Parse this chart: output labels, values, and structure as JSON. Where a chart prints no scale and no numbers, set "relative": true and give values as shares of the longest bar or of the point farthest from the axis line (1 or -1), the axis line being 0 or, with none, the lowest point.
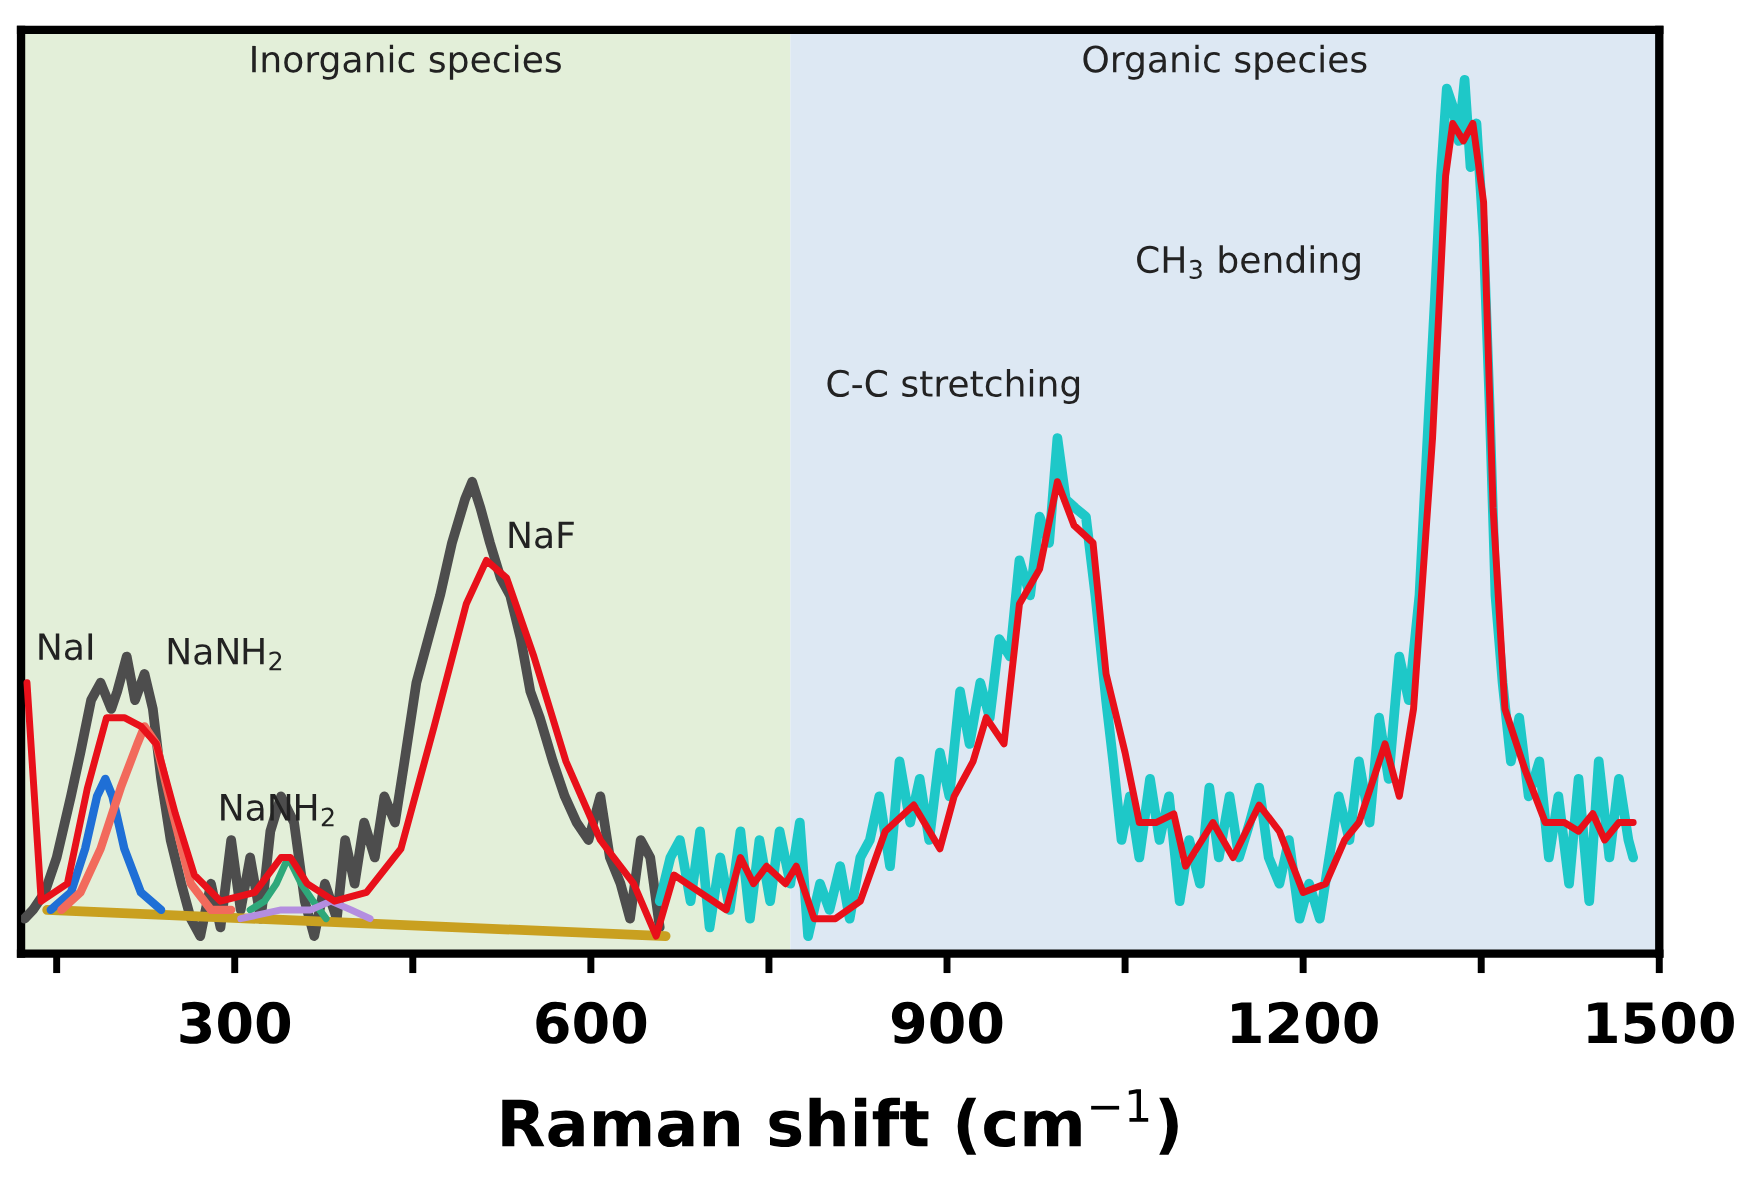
{
  "chart_data": {
    "type": "line",
    "relative": true,
    "xlabel": "Raman shift (cm$^{−1}$)",
    "xlim": [
      120,
      1500
    ],
    "xticks": [
      {
        "value": 150,
        "label": null
      },
      300,
      {
        "value": 450,
        "label": null
      },
      600,
      {
        "value": 750,
        "label": null
      },
      900,
      {
        "value": 1050,
        "label": null
      },
      1200,
      {
        "value": 1350,
        "label": null
      },
      1500
    ],
    "tick_labels": "x",
    "grid": false,
    "marker": "none",
    "line_style": "solid",
    "bands": [
      {
        "axis": "x",
        "from": 120,
        "to": 768,
        "label": "Inorganic species",
        "color": "#e3efd9"
      },
      {
        "axis": "x",
        "from": 768,
        "to": 1500,
        "label": "Organic species",
        "color": "#dde8f3"
      }
    ],
    "annotations": [
      "NaI",
      "NaNH$_{2}$",
      "NaNH$_{2}$",
      "NaF",
      "C-C stretching",
      "CH$_{3}$ bending"
    ],
    "series": [
      {
        "color": "#4d4d4d",
        "x": [
          123,
          130,
          140,
          150,
          162,
          170,
          179,
          187,
          196,
          201,
          209,
          216,
          224,
          231,
          238,
          246,
          255,
          263,
          271,
          280,
          288,
          297,
          305,
          313,
          322,
          330,
          339,
          350,
          359,
          367,
          376,
          386,
          393,
          401,
          409,
          418,
          426,
          435,
          443,
          453,
          463,
          473,
          483,
          494,
          500,
          507,
          515,
          524,
          532,
          541,
          549,
          557,
          568,
          578,
          588,
          598,
          608,
          616,
          625,
          633,
          642,
          650,
          658
        ],
        "values": [
          0.04,
          0.05,
          0.07,
          0.11,
          0.18,
          0.23,
          0.29,
          0.31,
          0.28,
          0.3,
          0.34,
          0.29,
          0.32,
          0.28,
          0.2,
          0.13,
          0.08,
          0.04,
          0.02,
          0.08,
          0.03,
          0.13,
          0.05,
          0.11,
          0.04,
          0.14,
          0.18,
          0.15,
          0.06,
          0.02,
          0.08,
          0.04,
          0.13,
          0.08,
          0.15,
          0.11,
          0.18,
          0.15,
          0.22,
          0.31,
          0.36,
          0.41,
          0.47,
          0.52,
          0.54,
          0.51,
          0.47,
          0.43,
          0.41,
          0.36,
          0.3,
          0.27,
          0.22,
          0.18,
          0.15,
          0.13,
          0.18,
          0.11,
          0.08,
          0.04,
          0.13,
          0.11,
          0.03
        ]
      },
      {
        "color": "#1ec8c8",
        "x": [
          658,
          667,
          675,
          684,
          692,
          700,
          709,
          717,
          726,
          734,
          742,
          751,
          759,
          768,
          776,
          783,
          793,
          801,
          810,
          818,
          827,
          835,
          843,
          852,
          860,
          869,
          877,
          885,
          894,
          902,
          911,
          919,
          928,
          936,
          944,
          953,
          961,
          970,
          978,
          986,
          993,
          1000,
          1008,
          1017,
          1025,
          1034,
          1040,
          1047,
          1054,
          1062,
          1071,
          1079,
          1087,
          1096,
          1104,
          1113,
          1121,
          1129,
          1138,
          1146,
          1155,
          1163,
          1171,
          1180,
          1188,
          1197,
          1205,
          1214,
          1222,
          1230,
          1239,
          1247,
          1256,
          1264,
          1272,
          1281,
          1289,
          1298,
          1304,
          1311,
          1316,
          1321,
          1326,
          1331,
          1336,
          1341,
          1346,
          1352,
          1357,
          1362,
          1368,
          1375,
          1382,
          1390,
          1399,
          1407,
          1415,
          1424,
          1432,
          1441,
          1449,
          1458,
          1466,
          1474,
          1478
        ],
        "values": [
          0.06,
          0.11,
          0.13,
          0.06,
          0.14,
          0.03,
          0.11,
          0.05,
          0.14,
          0.04,
          0.13,
          0.06,
          0.14,
          0.08,
          0.15,
          0.02,
          0.08,
          0.05,
          0.1,
          0.04,
          0.11,
          0.13,
          0.18,
          0.1,
          0.22,
          0.15,
          0.2,
          0.13,
          0.23,
          0.18,
          0.3,
          0.24,
          0.31,
          0.27,
          0.36,
          0.34,
          0.45,
          0.41,
          0.5,
          0.47,
          0.59,
          0.52,
          0.51,
          0.5,
          0.41,
          0.29,
          0.22,
          0.13,
          0.18,
          0.11,
          0.2,
          0.13,
          0.18,
          0.06,
          0.13,
          0.08,
          0.19,
          0.11,
          0.18,
          0.11,
          0.15,
          0.19,
          0.11,
          0.08,
          0.13,
          0.04,
          0.08,
          0.04,
          0.11,
          0.18,
          0.13,
          0.22,
          0.15,
          0.27,
          0.2,
          0.34,
          0.29,
          0.41,
          0.57,
          0.75,
          0.89,
          0.99,
          0.97,
          0.93,
          1,
          0.9,
          0.95,
          0.82,
          0.63,
          0.41,
          0.31,
          0.22,
          0.27,
          0.18,
          0.22,
          0.11,
          0.18,
          0.08,
          0.2,
          0.06,
          0.22,
          0.11,
          0.2,
          0.13,
          0.11
        ]
      },
      {
        "color": "#c9a020",
        "x": [
          142,
          663
        ],
        "values": [
          0.05,
          0.02
        ]
      },
      {
        "color": "#1f6fd6",
        "x": [
          145,
          162,
          174,
          184,
          191,
          197,
          207,
          221,
          238
        ],
        "values": [
          0.05,
          0.07,
          0.12,
          0.18,
          0.2,
          0.18,
          0.12,
          0.07,
          0.05
        ]
      },
      {
        "color": "#f26a5c",
        "x": [
          154,
          170,
          187,
          204,
          218,
          224,
          234,
          248,
          263,
          280,
          297
        ],
        "values": [
          0.05,
          0.07,
          0.12,
          0.19,
          0.24,
          0.26,
          0.24,
          0.16,
          0.08,
          0.05,
          0.05
        ]
      },
      {
        "color": "#2ea87a",
        "x": [
          313,
          325,
          335,
          345,
          356,
          366,
          377
        ],
        "values": [
          0.05,
          0.06,
          0.08,
          0.11,
          0.08,
          0.06,
          0.04
        ]
      },
      {
        "color": "#b48ee0",
        "x": [
          305,
          339,
          364,
          381,
          398,
          414
        ],
        "values": [
          0.04,
          0.05,
          0.05,
          0.06,
          0.05,
          0.04
        ]
      },
      {
        "color": "#e8101a",
        "x": [
          125,
          137,
          159,
          176,
          192,
          207,
          221,
          234,
          250,
          266,
          288,
          317,
          339,
          347,
          361,
          384,
          411,
          440,
          468,
          495,
          512,
          529,
          552,
          579,
          608,
          636,
          655,
          670,
          692,
          714,
          726,
          737,
          748,
          764,
          773,
          788,
          806,
          827,
          848,
          872,
          894,
          906,
          922,
          933,
          948,
          961,
          978,
          993,
          1007,
          1023,
          1034,
          1050,
          1062,
          1076,
          1091,
          1101,
          1124,
          1141,
          1163,
          1180,
          1200,
          1219,
          1235,
          1247,
          1269,
          1281,
          1293,
          1309,
          1320,
          1326,
          1335,
          1343,
          1352,
          1360,
          1370,
          1387,
          1404,
          1420,
          1432,
          1444,
          1454,
          1466,
          1478
        ],
        "values": [
          0.31,
          0.06,
          0.08,
          0.19,
          0.27,
          0.27,
          0.26,
          0.24,
          0.16,
          0.09,
          0.06,
          0.07,
          0.11,
          0.11,
          0.08,
          0.06,
          0.07,
          0.12,
          0.26,
          0.4,
          0.45,
          0.43,
          0.34,
          0.22,
          0.13,
          0.08,
          0.02,
          0.09,
          0.07,
          0.05,
          0.11,
          0.08,
          0.1,
          0.08,
          0.1,
          0.04,
          0.04,
          0.06,
          0.14,
          0.17,
          0.12,
          0.18,
          0.22,
          0.27,
          0.24,
          0.4,
          0.44,
          0.54,
          0.49,
          0.47,
          0.32,
          0.23,
          0.15,
          0.15,
          0.16,
          0.1,
          0.15,
          0.11,
          0.17,
          0.14,
          0.07,
          0.08,
          0.13,
          0.15,
          0.24,
          0.18,
          0.28,
          0.59,
          0.89,
          0.95,
          0.93,
          0.95,
          0.86,
          0.51,
          0.28,
          0.21,
          0.15,
          0.15,
          0.14,
          0.16,
          0.13,
          0.15,
          0.15
        ]
      }
    ]
  }
}
